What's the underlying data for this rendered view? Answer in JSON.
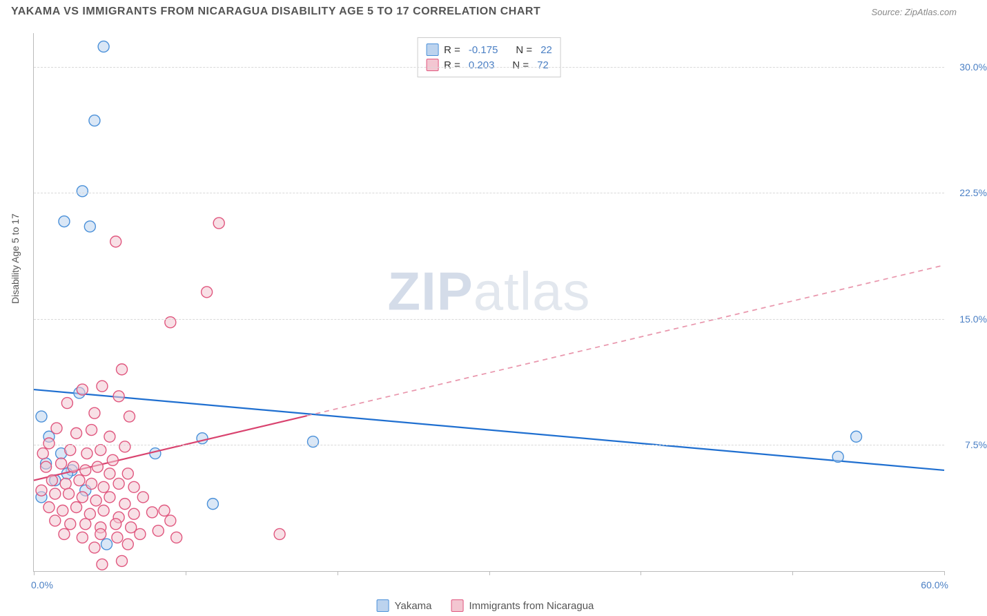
{
  "header": {
    "title": "YAKAMA VS IMMIGRANTS FROM NICARAGUA DISABILITY AGE 5 TO 17 CORRELATION CHART",
    "source": "Source: ZipAtlas.com"
  },
  "watermark": {
    "zip": "ZIP",
    "atlas": "atlas"
  },
  "chart": {
    "type": "scatter",
    "ylabel": "Disability Age 5 to 17",
    "background_color": "#ffffff",
    "grid_color": "#d8d8d8",
    "axis_color": "#bbbbbb",
    "label_color": "#4a7fc4",
    "xlim": [
      0,
      60
    ],
    "ylim": [
      0,
      32
    ],
    "yticks": [
      7.5,
      15.0,
      22.5,
      30.0
    ],
    "ytick_labels": [
      "7.5%",
      "15.0%",
      "22.5%",
      "30.0%"
    ],
    "xticks": [
      0,
      10,
      20,
      30,
      40,
      50,
      60
    ],
    "xtick_labels_shown": {
      "min": "0.0%",
      "max": "60.0%"
    },
    "marker_radius": 8,
    "marker_stroke_width": 1.4,
    "series": [
      {
        "name": "Yakama",
        "fill": "#bcd3ee",
        "stroke": "#4a90d9",
        "fill_opacity": 0.55,
        "trend": {
          "y_at_xmin": 10.8,
          "y_at_xmax": 6.0,
          "solid_until_x": 60,
          "solid_color": "#1f6fd0",
          "dash_color": "#1f6fd0",
          "width": 2.2
        },
        "points": [
          [
            4.6,
            31.2
          ],
          [
            4.0,
            26.8
          ],
          [
            3.2,
            22.6
          ],
          [
            2.0,
            20.8
          ],
          [
            3.7,
            20.5
          ],
          [
            3.0,
            10.6
          ],
          [
            11.1,
            7.9
          ],
          [
            0.5,
            9.2
          ],
          [
            18.4,
            7.7
          ],
          [
            1.8,
            7.0
          ],
          [
            2.5,
            6.0
          ],
          [
            8.0,
            7.0
          ],
          [
            1.4,
            5.4
          ],
          [
            2.2,
            5.8
          ],
          [
            0.8,
            6.4
          ],
          [
            3.4,
            4.8
          ],
          [
            54.2,
            8.0
          ],
          [
            53.0,
            6.8
          ],
          [
            1.0,
            8.0
          ],
          [
            11.8,
            4.0
          ],
          [
            4.8,
            1.6
          ],
          [
            0.5,
            4.4
          ]
        ]
      },
      {
        "name": "Immigrants from Nicaragua",
        "fill": "#f3c6d1",
        "stroke": "#e0567e",
        "fill_opacity": 0.55,
        "trend": {
          "y_at_xmin": 5.4,
          "y_at_xmax": 18.2,
          "solid_until_x": 18,
          "solid_color": "#d9436f",
          "dash_color": "#e997ad",
          "width": 2.2
        },
        "points": [
          [
            12.2,
            20.7
          ],
          [
            5.4,
            19.6
          ],
          [
            11.4,
            16.6
          ],
          [
            9.0,
            14.8
          ],
          [
            5.8,
            12.0
          ],
          [
            4.5,
            11.0
          ],
          [
            5.6,
            10.4
          ],
          [
            3.2,
            10.8
          ],
          [
            2.2,
            10.0
          ],
          [
            4.0,
            9.4
          ],
          [
            6.3,
            9.2
          ],
          [
            1.5,
            8.5
          ],
          [
            2.8,
            8.2
          ],
          [
            3.8,
            8.4
          ],
          [
            5.0,
            8.0
          ],
          [
            6.0,
            7.4
          ],
          [
            1.0,
            7.6
          ],
          [
            0.6,
            7.0
          ],
          [
            2.4,
            7.2
          ],
          [
            3.5,
            7.0
          ],
          [
            4.4,
            7.2
          ],
          [
            5.2,
            6.6
          ],
          [
            0.8,
            6.2
          ],
          [
            1.8,
            6.4
          ],
          [
            2.6,
            6.2
          ],
          [
            3.4,
            6.0
          ],
          [
            4.2,
            6.2
          ],
          [
            5.0,
            5.8
          ],
          [
            6.2,
            5.8
          ],
          [
            1.2,
            5.4
          ],
          [
            2.1,
            5.2
          ],
          [
            3.0,
            5.4
          ],
          [
            3.8,
            5.2
          ],
          [
            4.6,
            5.0
          ],
          [
            5.6,
            5.2
          ],
          [
            6.6,
            5.0
          ],
          [
            0.5,
            4.8
          ],
          [
            1.4,
            4.6
          ],
          [
            2.3,
            4.6
          ],
          [
            3.2,
            4.4
          ],
          [
            4.1,
            4.2
          ],
          [
            5.0,
            4.4
          ],
          [
            6.0,
            4.0
          ],
          [
            7.2,
            4.4
          ],
          [
            1.0,
            3.8
          ],
          [
            1.9,
            3.6
          ],
          [
            2.8,
            3.8
          ],
          [
            3.7,
            3.4
          ],
          [
            4.6,
            3.6
          ],
          [
            5.6,
            3.2
          ],
          [
            6.6,
            3.4
          ],
          [
            7.8,
            3.5
          ],
          [
            8.6,
            3.6
          ],
          [
            1.4,
            3.0
          ],
          [
            2.4,
            2.8
          ],
          [
            3.4,
            2.8
          ],
          [
            4.4,
            2.6
          ],
          [
            5.4,
            2.8
          ],
          [
            6.4,
            2.6
          ],
          [
            9.0,
            3.0
          ],
          [
            2.0,
            2.2
          ],
          [
            3.2,
            2.0
          ],
          [
            4.4,
            2.2
          ],
          [
            5.5,
            2.0
          ],
          [
            7.0,
            2.2
          ],
          [
            8.2,
            2.4
          ],
          [
            9.4,
            2.0
          ],
          [
            4.0,
            1.4
          ],
          [
            6.2,
            1.6
          ],
          [
            16.2,
            2.2
          ],
          [
            5.8,
            0.6
          ],
          [
            4.5,
            0.4
          ]
        ]
      }
    ],
    "legend_top": [
      {
        "r_label": "R =",
        "r_value": "-0.175",
        "n_label": "N =",
        "n_value": "22"
      },
      {
        "r_label": "R =",
        "r_value": "0.203",
        "n_label": "N =",
        "n_value": "72"
      }
    ],
    "legend_bottom": [
      {
        "label": "Yakama"
      },
      {
        "label": "Immigrants from Nicaragua"
      }
    ]
  }
}
